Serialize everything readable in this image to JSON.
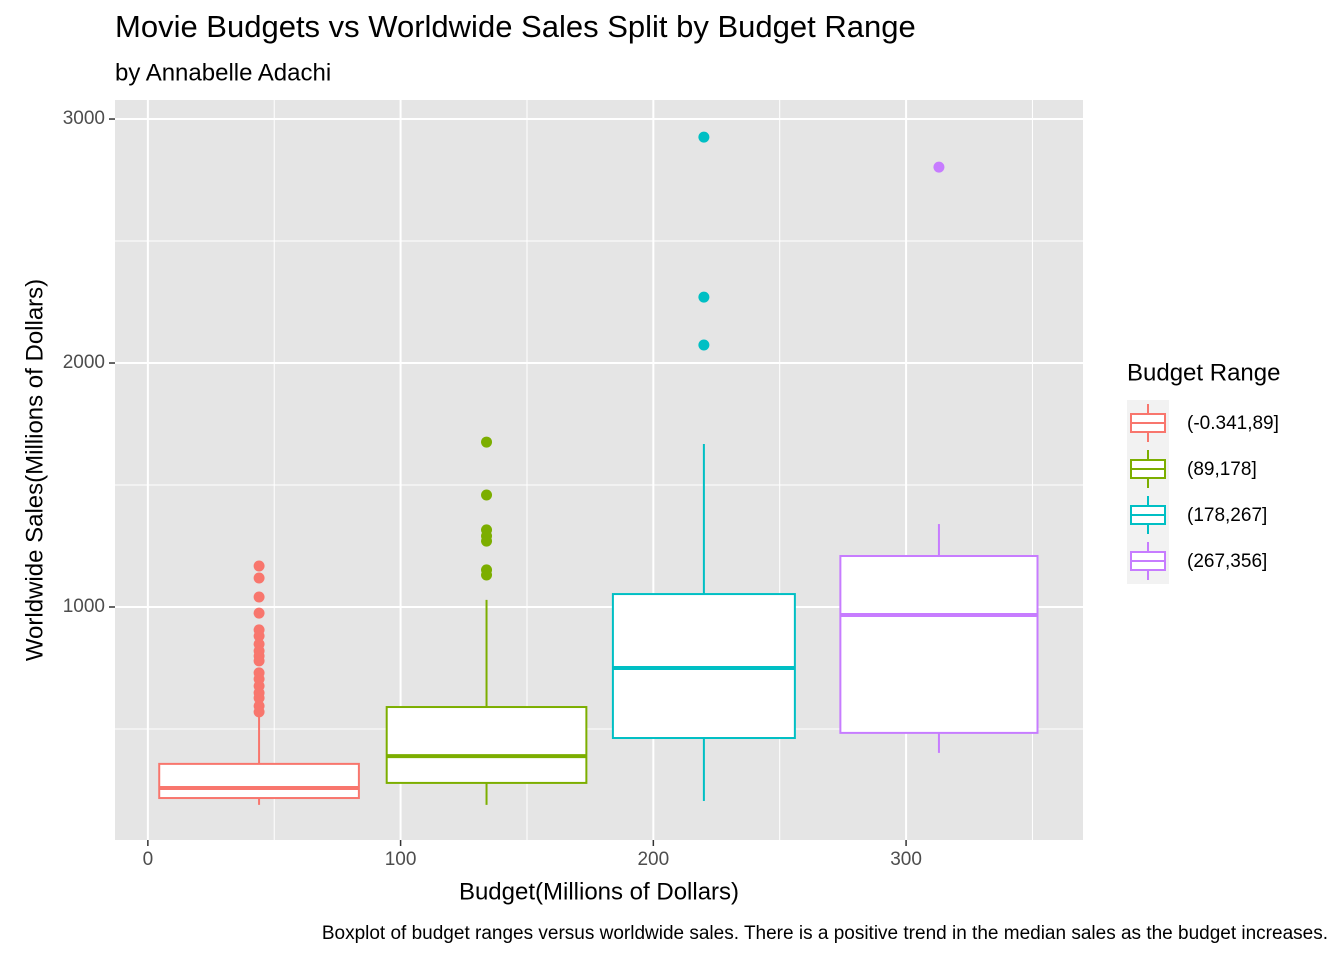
{
  "chart_data": {
    "type": "boxplot",
    "title": "Movie Budgets vs Worldwide Sales Split by Budget Range",
    "subtitle": "by Annabelle Adachi",
    "caption": "Boxplot of budget ranges versus worldwide sales. There is a positive trend in the median sales as the budget increases.",
    "x_label": "Budget(Millions of Dollars)",
    "y_label": "Worldwide Sales(Millions of Dollars)",
    "legend_title": "Budget Range",
    "legend_position": "right",
    "grid": true,
    "xlim": [
      -13,
      370
    ],
    "ylim": [
      45,
      3078
    ],
    "xticks": [
      0,
      100,
      200,
      300
    ],
    "yticks": [
      1000,
      2000,
      3000
    ],
    "x_minor_ticks": [
      50,
      150,
      250,
      350
    ],
    "y_minor_ticks": [
      500,
      1500,
      2500
    ],
    "series": [
      {
        "name": "(-0.341,89]",
        "color": "#F8766D",
        "x": 44,
        "width": 79,
        "min": 189,
        "q1": 217,
        "median": 258,
        "q3": 357,
        "max": 560,
        "outliers": [
          1168,
          1119,
          1041,
          975,
          906,
          881,
          848,
          820,
          799,
          779,
          730,
          705,
          676,
          648,
          627,
          594,
          570
        ]
      },
      {
        "name": "(89,178]",
        "color": "#7CAE00",
        "x": 134,
        "width": 79,
        "min": 189,
        "q1": 279,
        "median": 389,
        "q3": 590,
        "max": 1029,
        "outliers": [
          1676,
          1459,
          1316,
          1291,
          1270,
          1152,
          1131
        ]
      },
      {
        "name": "(178,267]",
        "color": "#00BFC4",
        "x": 220,
        "width": 72,
        "min": 205,
        "q1": 463,
        "median": 750,
        "q3": 1053,
        "max": 1668,
        "outliers": [
          2926,
          2270,
          2074
        ]
      },
      {
        "name": "(267,356]",
        "color": "#C77CFF",
        "x": 313,
        "width": 78,
        "min": 402,
        "q1": 484,
        "median": 967,
        "q3": 1209,
        "max": 1340,
        "outliers": [
          2803
        ]
      }
    ]
  }
}
